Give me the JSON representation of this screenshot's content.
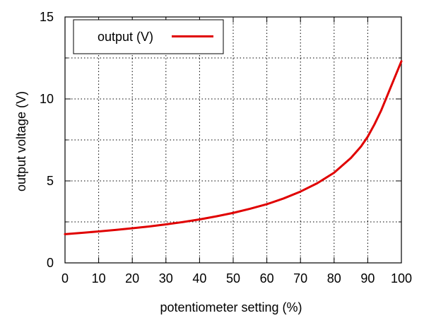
{
  "chart_data": {
    "type": "line",
    "title": "",
    "xlabel": "potentiometer setting (%)",
    "ylabel": "output voltage (V)",
    "xlim": [
      0,
      100
    ],
    "ylim": [
      0,
      15
    ],
    "xticks": [
      0,
      10,
      20,
      30,
      40,
      50,
      60,
      70,
      80,
      90,
      100
    ],
    "yticks": [
      0,
      5,
      10,
      15
    ],
    "grid": true,
    "legend_position": "top-left",
    "series": [
      {
        "name": "output (V)",
        "color": "#e00000",
        "x": [
          0,
          5,
          10,
          15,
          20,
          25,
          30,
          35,
          40,
          45,
          50,
          55,
          60,
          65,
          70,
          75,
          80,
          85,
          88,
          90,
          92,
          94,
          96,
          98,
          100
        ],
        "y": [
          1.75,
          1.83,
          1.92,
          2.01,
          2.11,
          2.22,
          2.35,
          2.49,
          2.65,
          2.84,
          3.05,
          3.3,
          3.58,
          3.93,
          4.35,
          4.86,
          5.5,
          6.4,
          7.1,
          7.7,
          8.45,
          9.3,
          10.3,
          11.3,
          12.3
        ]
      }
    ]
  }
}
